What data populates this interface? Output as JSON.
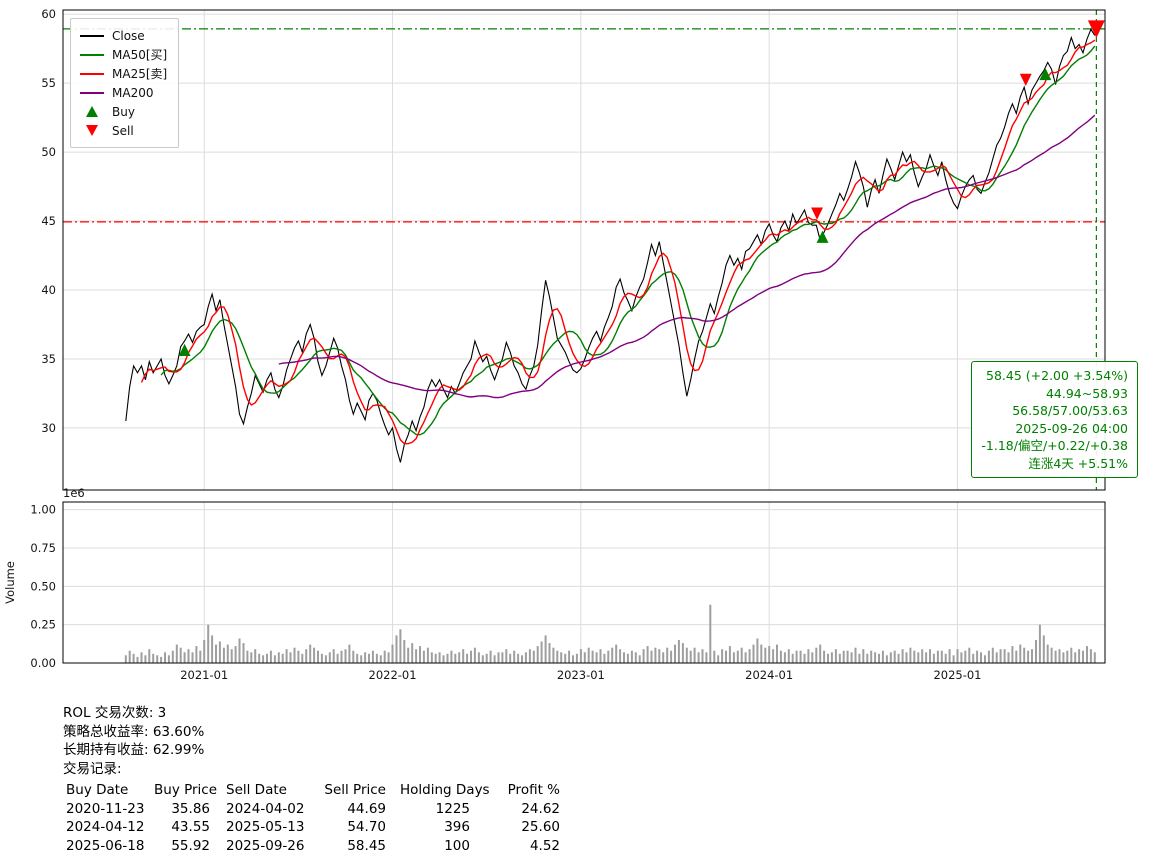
{
  "chart_data": {
    "type": "line",
    "title": "",
    "xlabel": "",
    "ylabel": "",
    "x_unit": "months since 2020-08, 4 points per month (weekly)",
    "points_per_month": 4,
    "x_axis": {
      "min": -4,
      "max": 62.4
    },
    "price_axis": {
      "min": 25.5,
      "max": 60.3,
      "ticks": [
        30,
        35,
        40,
        45,
        50,
        55,
        60
      ]
    },
    "volume_axis": {
      "min": 0,
      "max": 1.05,
      "ticks": [
        0.0,
        0.25,
        0.5,
        0.75,
        1.0
      ],
      "scale_label": "1e6",
      "axis_label": "Volume"
    },
    "x_ticks": [
      {
        "pos": 5,
        "label": "2021-01"
      },
      {
        "pos": 17,
        "label": "2022-01"
      },
      {
        "pos": 29,
        "label": "2023-01"
      },
      {
        "pos": 41,
        "label": "2024-01"
      },
      {
        "pos": 53,
        "label": "2025-01"
      }
    ],
    "grid": true,
    "legend_position": "upper-left",
    "series": [
      {
        "key": "close",
        "name": "Close",
        "color": "#000000",
        "window": 1
      },
      {
        "key": "ma50",
        "name": "MA50[买]",
        "color": "#008000",
        "window": 10
      },
      {
        "key": "ma25",
        "name": "MA25[卖]",
        "color": "#ff0000",
        "window": 5
      },
      {
        "key": "ma200",
        "name": "MA200",
        "color": "#800080",
        "window": 40
      }
    ],
    "close": [
      30.5,
      33.0,
      34.5,
      34.0,
      34.5,
      33.5,
      34.8,
      34.0,
      34.5,
      35.0,
      33.8,
      33.2,
      33.8,
      34.5,
      35.9,
      36.3,
      36.8,
      36.2,
      37.0,
      37.3,
      37.5,
      38.8,
      39.7,
      38.5,
      39.3,
      37.5,
      36.0,
      34.5,
      33.0,
      31.0,
      30.3,
      31.5,
      32.5,
      33.8,
      33.2,
      32.6,
      33.5,
      34.0,
      32.8,
      32.2,
      33.0,
      34.2,
      35.0,
      35.8,
      36.3,
      35.5,
      36.8,
      37.5,
      36.5,
      34.8,
      33.8,
      34.5,
      35.5,
      36.5,
      35.8,
      34.5,
      33.5,
      32.0,
      31.0,
      31.8,
      31.2,
      30.6,
      32.0,
      32.5,
      32.0,
      31.0,
      30.2,
      29.5,
      30.0,
      28.5,
      27.5,
      28.8,
      29.5,
      30.5,
      29.8,
      30.8,
      31.5,
      32.8,
      33.5,
      33.0,
      33.5,
      32.8,
      32.2,
      33.0,
      32.5,
      33.2,
      34.0,
      34.5,
      35.0,
      36.3,
      35.5,
      34.8,
      35.2,
      34.2,
      33.5,
      34.3,
      35.0,
      36.2,
      35.5,
      34.5,
      34.0,
      33.2,
      32.8,
      33.8,
      34.5,
      36.0,
      38.5,
      40.7,
      39.5,
      38.0,
      36.5,
      36.0,
      35.5,
      34.8,
      34.2,
      34.0,
      34.3,
      35.0,
      35.8,
      36.5,
      37.0,
      36.3,
      37.3,
      38.0,
      38.8,
      40.2,
      40.8,
      39.8,
      39.2,
      38.5,
      39.5,
      40.2,
      40.8,
      42.0,
      43.3,
      42.5,
      43.5,
      42.0,
      40.5,
      39.0,
      37.5,
      36.0,
      34.0,
      32.3,
      33.5,
      35.0,
      36.3,
      37.0,
      38.0,
      39.0,
      38.3,
      39.5,
      40.5,
      41.8,
      42.5,
      41.8,
      42.3,
      41.5,
      42.8,
      43.0,
      43.5,
      44.0,
      43.3,
      44.3,
      44.8,
      44.0,
      43.5,
      44.5,
      45.0,
      44.3,
      45.5,
      44.8,
      45.3,
      45.8,
      44.9,
      44.7,
      44.7,
      43.6,
      44.2,
      44.8,
      45.5,
      46.2,
      47.0,
      46.5,
      47.3,
      48.2,
      49.3,
      48.5,
      47.5,
      46.0,
      47.2,
      48.0,
      47.0,
      48.3,
      49.5,
      48.8,
      48.0,
      49.0,
      50.0,
      49.3,
      49.8,
      48.5,
      47.5,
      48.2,
      48.8,
      49.8,
      49.0,
      48.3,
      49.3,
      48.0,
      47.0,
      46.3,
      45.9,
      46.8,
      47.5,
      48.0,
      48.3,
      47.3,
      47.0,
      47.8,
      48.5,
      49.5,
      50.5,
      51.0,
      51.8,
      52.8,
      53.5,
      52.8,
      54.0,
      54.7,
      53.5,
      54.5,
      55.0,
      55.5,
      55.9,
      56.5,
      56.0,
      54.9,
      56.2,
      57.0,
      57.3,
      58.3,
      57.5,
      57.8,
      57.2,
      58.2,
      58.9,
      58.45
    ],
    "volume": [
      0.05,
      0.08,
      0.06,
      0.04,
      0.07,
      0.05,
      0.09,
      0.06,
      0.05,
      0.04,
      0.07,
      0.05,
      0.08,
      0.12,
      0.1,
      0.07,
      0.09,
      0.07,
      0.11,
      0.08,
      0.15,
      0.25,
      0.18,
      0.12,
      0.14,
      0.1,
      0.12,
      0.09,
      0.11,
      0.16,
      0.13,
      0.08,
      0.07,
      0.09,
      0.06,
      0.05,
      0.06,
      0.08,
      0.05,
      0.07,
      0.06,
      0.09,
      0.07,
      0.1,
      0.08,
      0.06,
      0.09,
      0.12,
      0.1,
      0.08,
      0.06,
      0.05,
      0.07,
      0.09,
      0.06,
      0.08,
      0.09,
      0.12,
      0.08,
      0.06,
      0.05,
      0.07,
      0.06,
      0.08,
      0.06,
      0.05,
      0.08,
      0.07,
      0.12,
      0.18,
      0.22,
      0.15,
      0.1,
      0.13,
      0.09,
      0.11,
      0.08,
      0.1,
      0.07,
      0.06,
      0.07,
      0.05,
      0.06,
      0.08,
      0.06,
      0.07,
      0.09,
      0.06,
      0.08,
      0.1,
      0.07,
      0.05,
      0.06,
      0.08,
      0.05,
      0.07,
      0.07,
      0.09,
      0.06,
      0.08,
      0.06,
      0.05,
      0.07,
      0.09,
      0.08,
      0.11,
      0.14,
      0.18,
      0.13,
      0.1,
      0.08,
      0.07,
      0.06,
      0.08,
      0.05,
      0.06,
      0.09,
      0.07,
      0.1,
      0.08,
      0.07,
      0.09,
      0.06,
      0.08,
      0.1,
      0.12,
      0.09,
      0.07,
      0.06,
      0.08,
      0.07,
      0.05,
      0.09,
      0.11,
      0.08,
      0.1,
      0.09,
      0.07,
      0.1,
      0.08,
      0.12,
      0.15,
      0.13,
      0.1,
      0.08,
      0.1,
      0.07,
      0.09,
      0.07,
      0.38,
      0.08,
      0.05,
      0.09,
      0.08,
      0.11,
      0.07,
      0.08,
      0.1,
      0.07,
      0.09,
      0.12,
      0.16,
      0.12,
      0.1,
      0.11,
      0.09,
      0.12,
      0.08,
      0.07,
      0.09,
      0.06,
      0.08,
      0.08,
      0.06,
      0.09,
      0.07,
      0.1,
      0.12,
      0.08,
      0.06,
      0.07,
      0.09,
      0.06,
      0.08,
      0.08,
      0.07,
      0.1,
      0.06,
      0.09,
      0.06,
      0.08,
      0.07,
      0.06,
      0.08,
      0.05,
      0.07,
      0.08,
      0.06,
      0.09,
      0.07,
      0.1,
      0.08,
      0.07,
      0.09,
      0.07,
      0.09,
      0.06,
      0.08,
      0.08,
      0.06,
      0.09,
      0.05,
      0.09,
      0.07,
      0.08,
      0.1,
      0.06,
      0.08,
      0.07,
      0.05,
      0.08,
      0.1,
      0.07,
      0.09,
      0.09,
      0.07,
      0.11,
      0.08,
      0.12,
      0.1,
      0.08,
      0.09,
      0.15,
      0.25,
      0.18,
      0.12,
      0.1,
      0.08,
      0.09,
      0.07,
      0.08,
      0.1,
      0.07,
      0.09,
      0.08,
      0.11,
      0.09,
      0.07
    ],
    "markers": [
      {
        "type": "buy",
        "label": "Buy",
        "color": "#008000",
        "points": [
          {
            "x": 3.75,
            "y": 35.6,
            "s": 7
          },
          {
            "x": 44.4,
            "y": 43.8,
            "s": 7
          },
          {
            "x": 58.6,
            "y": 55.6,
            "s": 7
          }
        ]
      },
      {
        "type": "sell",
        "label": "Sell",
        "color": "#ff0000",
        "points": [
          {
            "x": 44.05,
            "y": 45.6,
            "s": 7
          },
          {
            "x": 57.35,
            "y": 55.3,
            "s": 7
          },
          {
            "x": 61.85,
            "y": 59.0,
            "s": 10
          }
        ]
      }
    ],
    "hlines": [
      {
        "y": 58.93,
        "color": "#008000"
      },
      {
        "y": 44.94,
        "color": "#ff0000"
      }
    ],
    "vlines": [
      {
        "x": 61.85,
        "color": "#008000"
      }
    ],
    "annotation": {
      "color": "#008000",
      "lines": [
        "58.45 (+2.00 +3.54%)",
        "44.94~58.93",
        "56.58/57.00/53.63",
        "2025-09-26 04:00",
        "-1.18/偏空/+0.22/+0.38",
        "连涨4天 +5.51%"
      ]
    }
  },
  "legend": {
    "items": [
      {
        "key": "close",
        "label": "Close",
        "swatch": "line",
        "color": "#000000"
      },
      {
        "key": "ma50",
        "label": "MA50[买]",
        "swatch": "line",
        "color": "#008000"
      },
      {
        "key": "ma25",
        "label": "MA25[卖]",
        "swatch": "line",
        "color": "#ff0000"
      },
      {
        "key": "ma200",
        "label": "MA200",
        "swatch": "line",
        "color": "#800080"
      },
      {
        "key": "buy",
        "label": "Buy",
        "swatch": "triangle-up",
        "color": "#008000"
      },
      {
        "key": "sell",
        "label": "Sell",
        "swatch": "triangle-down",
        "color": "#ff0000"
      }
    ]
  },
  "stats": {
    "lines": [
      "ROL 交易次数: 3",
      "策略总收益率: 63.60%",
      "长期持有收益: 62.99%",
      "交易记录:"
    ]
  },
  "trades": {
    "headers": [
      "Buy Date",
      "Buy Price",
      "Sell Date",
      "Sell Price",
      "Holding Days",
      "Profit %"
    ],
    "rows": [
      [
        "2020-11-23",
        "35.86",
        "2024-04-02",
        "44.69",
        "1225",
        "24.62"
      ],
      [
        "2024-04-12",
        "43.55",
        "2025-05-13",
        "54.70",
        "396",
        "25.60"
      ],
      [
        "2025-06-18",
        "55.92",
        "2025-09-26",
        "58.45",
        "100",
        "4.52"
      ]
    ]
  },
  "colors": {
    "grid": "#dcdcdc",
    "volume_bar": "#9e9e9e",
    "annotation_green": "#008000",
    "low_line_red": "#ff0000"
  }
}
